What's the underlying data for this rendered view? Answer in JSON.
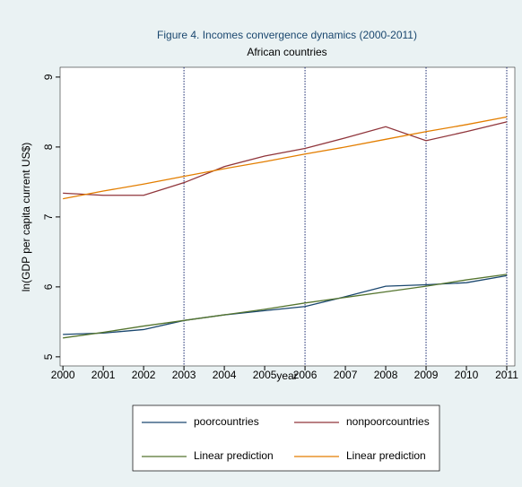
{
  "chart_data": {
    "type": "line",
    "title": "Figure 4. Incomes convergence dynamics (2000-2011)",
    "subtitle": "African countries",
    "x_label": "year",
    "y_label": "ln(GDP per capita current US$)",
    "x": [
      2000,
      2001,
      2002,
      2003,
      2004,
      2005,
      2006,
      2007,
      2008,
      2009,
      2010,
      2011
    ],
    "series": [
      {
        "name": "poorcountries",
        "color": "#1a476f",
        "values": [
          5.32,
          5.34,
          5.39,
          5.52,
          5.6,
          5.66,
          5.72,
          5.86,
          6.01,
          6.03,
          6.06,
          6.16
        ]
      },
      {
        "name": "nonpoorcountries",
        "color": "#90353b",
        "values": [
          7.34,
          7.31,
          7.31,
          7.49,
          7.72,
          7.87,
          7.98,
          8.13,
          8.29,
          8.09,
          8.22,
          8.36
        ]
      },
      {
        "name": "Linear prediction",
        "color": "#55752f",
        "values": [
          5.27,
          5.35,
          5.44,
          5.52,
          5.6,
          5.68,
          5.77,
          5.85,
          5.93,
          6.01,
          6.1,
          6.18
        ]
      },
      {
        "name": "Linear prediction",
        "color": "#e37e00",
        "values": [
          7.26,
          7.37,
          7.47,
          7.58,
          7.69,
          7.79,
          7.9,
          8.0,
          8.11,
          8.22,
          8.32,
          8.43
        ]
      }
    ],
    "xlim": [
      1999.93,
      2011.2
    ],
    "xticks": [
      2000,
      2001,
      2002,
      2003,
      2004,
      2005,
      2006,
      2007,
      2008,
      2009,
      2010,
      2011
    ],
    "ylim": [
      4.87,
      9.14
    ],
    "yticks": [
      5,
      6,
      7,
      8,
      9
    ],
    "xlines": [
      2003,
      2006,
      2009,
      2011
    ],
    "xline_color": "#1a2a6f",
    "title_color": "#1a476f",
    "legend_position": "bottom"
  }
}
